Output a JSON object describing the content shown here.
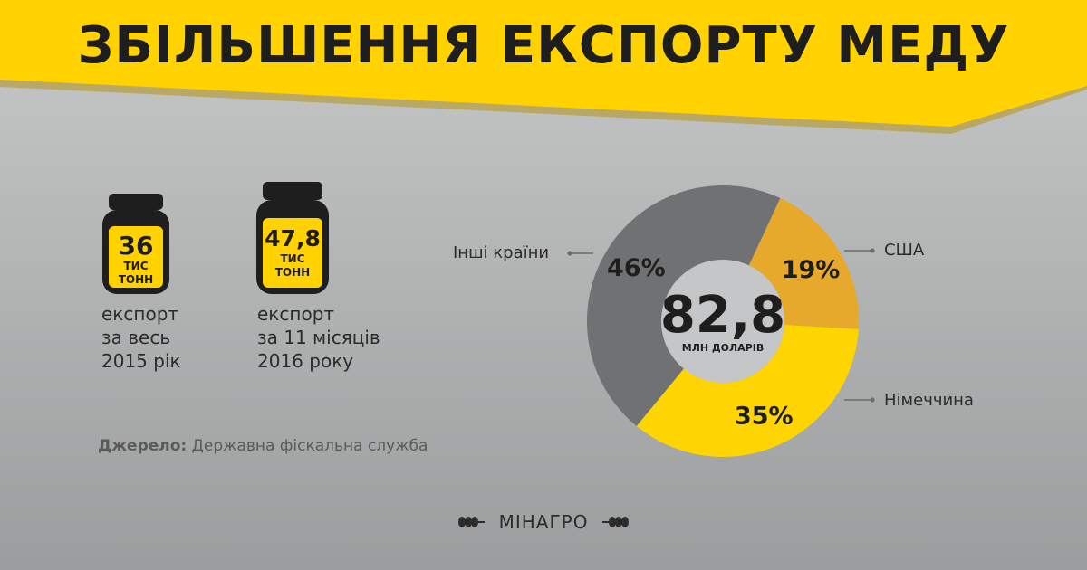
{
  "title": "ЗБІЛЬШЕННЯ ЕКСПОРТУ МЕДУ",
  "jars": [
    {
      "value": "36",
      "unit_line1": "ТИС",
      "unit_line2": "ТОНН",
      "caption_lines": [
        "експорт",
        "за весь",
        "2015 рік"
      ]
    },
    {
      "value": "47,8",
      "unit_line1": "ТИС",
      "unit_line2": "ТОНН",
      "caption_lines": [
        "експорт",
        "за 11 місяців",
        "2016 року"
      ]
    }
  ],
  "source": {
    "label": "Джерело:",
    "text": "Державна фіскальна служба"
  },
  "logo": {
    "text": "МІНАГРО",
    "icon": "wheat-icon"
  },
  "colors": {
    "banner": "#ffd200",
    "gray_segment": "#6f7172",
    "usa_segment": "#e6a92b",
    "germany_segment": "#fed500",
    "center": "#c4c6c7",
    "text_dark": "#1e1e1e"
  },
  "chart_data": {
    "type": "pie",
    "donut": true,
    "center_value": "82,8",
    "center_unit": "МЛН ДОЛАРІВ",
    "slices": [
      {
        "name": "США",
        "value": 19,
        "label": "19%",
        "color": "#e6a92b"
      },
      {
        "name": "Німеччина",
        "value": 35,
        "label": "35%",
        "color": "#fed500"
      },
      {
        "name": "Інші країни",
        "value": 46,
        "label": "46%",
        "color": "#6f7172"
      }
    ]
  }
}
